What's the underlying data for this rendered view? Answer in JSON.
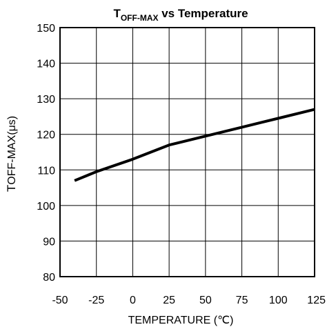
{
  "chart_data": {
    "type": "line",
    "title": {
      "prefix": "T",
      "subscript": "OFF-MAX",
      "suffix": " vs Temperature"
    },
    "xlabel": "TEMPERATURE (℃)",
    "ylabel": {
      "prefix": "T",
      "rest": "OFF-MAX(μs)"
    },
    "xlim": [
      -50,
      125
    ],
    "ylim": [
      80,
      150
    ],
    "x_ticks": [
      "-50",
      "-25",
      "0",
      "25",
      "50",
      "75",
      "100",
      "125"
    ],
    "y_ticks": [
      "80",
      "90",
      "100",
      "110",
      "120",
      "130",
      "140",
      "150"
    ],
    "grid": true,
    "series": [
      {
        "x": [
          -40,
          -25,
          0,
          25,
          50,
          75,
          100,
          125
        ],
        "y": [
          107,
          109.5,
          113,
          117,
          119.5,
          122,
          124.5,
          127
        ],
        "color": "#000000"
      }
    ]
  }
}
